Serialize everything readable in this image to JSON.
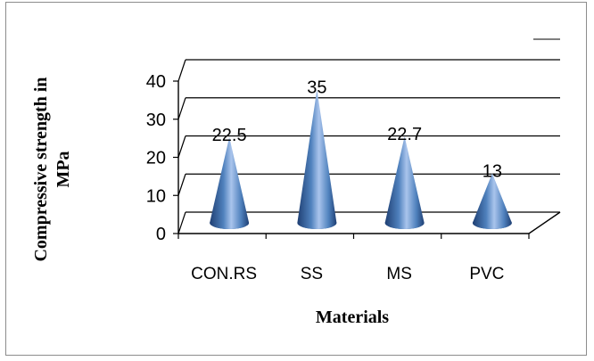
{
  "chart_data": {
    "type": "bar",
    "bar_shape": "3d-cone",
    "categories": [
      "CON.RS",
      "SS",
      "MS",
      "PVC"
    ],
    "values": [
      22.5,
      35,
      22.7,
      13
    ],
    "data_labels": [
      "22.5",
      "35",
      "22.7",
      "13"
    ],
    "title": "",
    "xlabel": "Materials",
    "ylabel_lines": [
      "Compressive strength in",
      "MPa"
    ],
    "ylim": [
      0,
      40
    ],
    "yticks": [
      "0",
      "10",
      "20",
      "30",
      "40"
    ],
    "grid": true,
    "legend": "top-right",
    "colors": {
      "cone_light": "#a9c4ec",
      "cone_mid": "#4f81bd",
      "cone_dark": "#1f3f73",
      "gridline": "#000000"
    }
  }
}
